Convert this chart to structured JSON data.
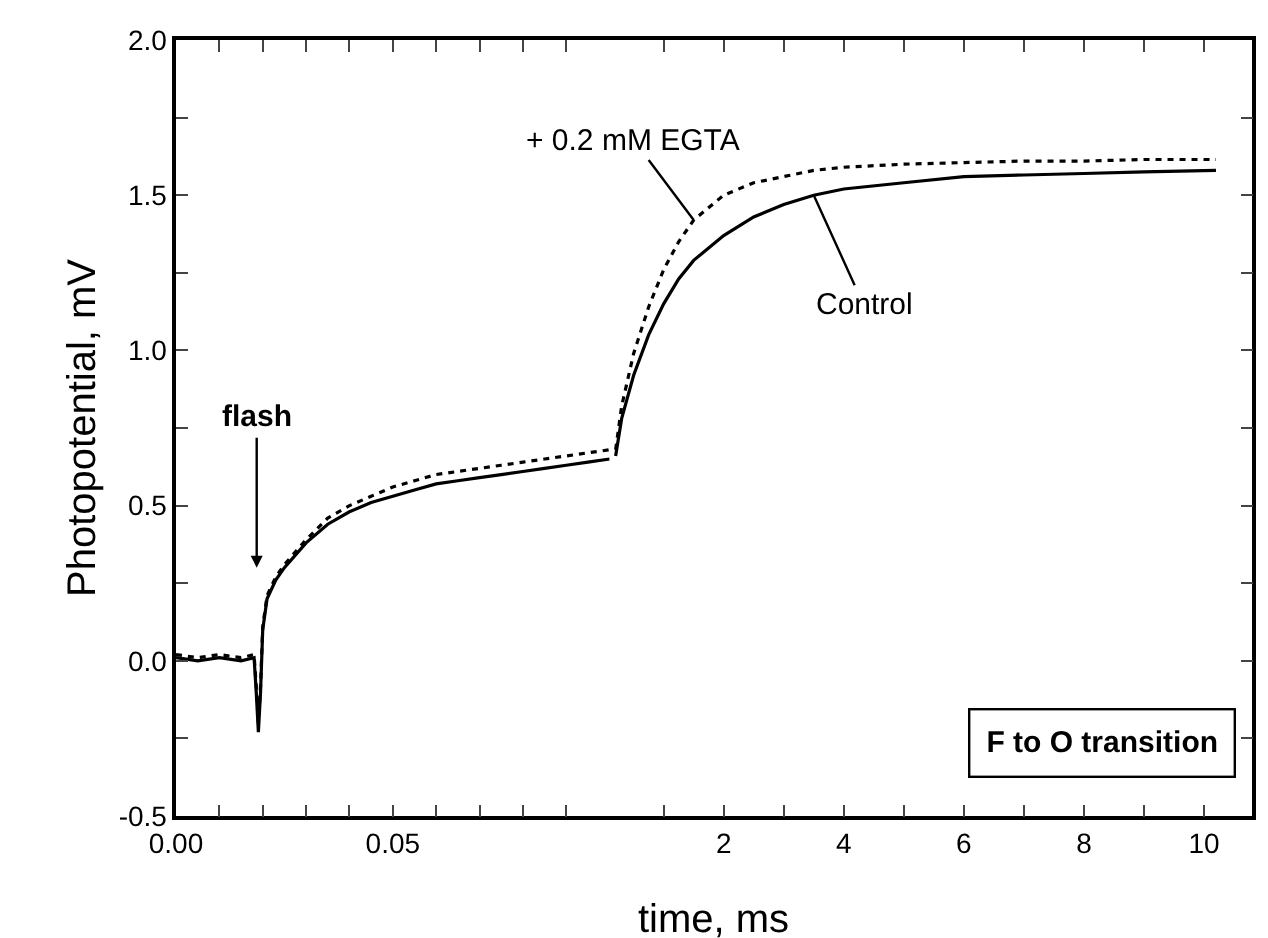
{
  "chart_data": [
    {
      "type": "line",
      "ylabel": "Photopotential, mV",
      "xlim": [
        0,
        0.1
      ],
      "ylim": [
        -0.5,
        2.0
      ],
      "xticks": [
        {
          "value": 0,
          "label": "0.00"
        },
        {
          "value": 0.01,
          "label": null
        },
        {
          "value": 0.02,
          "label": null
        },
        {
          "value": 0.03,
          "label": null
        },
        {
          "value": 0.04,
          "label": null
        },
        {
          "value": 0.05,
          "label": "0.05"
        },
        {
          "value": 0.06,
          "label": null
        },
        {
          "value": 0.07,
          "label": null
        },
        {
          "value": 0.08,
          "label": null
        },
        {
          "value": 0.09,
          "label": null
        }
      ],
      "yticks": [
        {
          "value": -0.5,
          "label": "-0.5"
        },
        {
          "value": -0.25,
          "label": null
        },
        {
          "value": 0,
          "label": "0.0"
        },
        {
          "value": 0.25,
          "label": null
        },
        {
          "value": 0.5,
          "label": "0.5"
        },
        {
          "value": 0.75,
          "label": null
        },
        {
          "value": 1.0,
          "label": "1.0"
        },
        {
          "value": 1.25,
          "label": null
        },
        {
          "value": 1.5,
          "label": "1.5"
        },
        {
          "value": 1.75,
          "label": null
        },
        {
          "value": 2.0,
          "label": "2.0"
        }
      ],
      "series": [
        {
          "color": "#000000",
          "line_style": "solid",
          "x": [
            0,
            0.005,
            0.01,
            0.015,
            0.018,
            0.0185,
            0.019,
            0.0195,
            0.02,
            0.021,
            0.023,
            0.025,
            0.03,
            0.035,
            0.04,
            0.045,
            0.05,
            0.055,
            0.06,
            0.065,
            0.07,
            0.075,
            0.08,
            0.085,
            0.09,
            0.095,
            0.1
          ],
          "values": [
            0.01,
            0.0,
            0.01,
            0.0,
            0.01,
            -0.1,
            -0.23,
            -0.1,
            0.1,
            0.2,
            0.26,
            0.3,
            0.38,
            0.44,
            0.48,
            0.51,
            0.53,
            0.55,
            0.57,
            0.58,
            0.59,
            0.6,
            0.61,
            0.62,
            0.63,
            0.64,
            0.65
          ]
        },
        {
          "color": "#000000",
          "line_style": "dotted",
          "x": [
            0,
            0.005,
            0.01,
            0.015,
            0.018,
            0.0185,
            0.019,
            0.0195,
            0.02,
            0.021,
            0.023,
            0.025,
            0.03,
            0.035,
            0.04,
            0.045,
            0.05,
            0.055,
            0.06,
            0.065,
            0.07,
            0.075,
            0.08,
            0.085,
            0.09,
            0.095,
            0.1
          ],
          "values": [
            0.02,
            0.01,
            0.02,
            0.01,
            0.02,
            -0.08,
            -0.2,
            -0.08,
            0.11,
            0.21,
            0.27,
            0.31,
            0.39,
            0.46,
            0.5,
            0.53,
            0.56,
            0.58,
            0.6,
            0.61,
            0.62,
            0.63,
            0.64,
            0.65,
            0.66,
            0.67,
            0.68
          ]
        }
      ],
      "annotations": [
        "flash"
      ],
      "tick_labels": true
    },
    {
      "type": "line",
      "xlabel": "time, ms",
      "xlim": [
        0.1,
        10.8
      ],
      "ylim": [
        -0.5,
        2.0
      ],
      "xticks": [
        {
          "value": 1,
          "label": null
        },
        2,
        {
          "value": 3,
          "label": null
        },
        4,
        {
          "value": 5,
          "label": null
        },
        6,
        {
          "value": 7,
          "label": null
        },
        8,
        {
          "value": 9,
          "label": null
        },
        10
      ],
      "yticks": [
        {
          "value": -0.5,
          "label": null
        },
        {
          "value": -0.25,
          "label": null
        },
        {
          "value": 0,
          "label": null
        },
        {
          "value": 0.25,
          "label": null
        },
        {
          "value": 0.5,
          "label": null
        },
        {
          "value": 0.75,
          "label": null
        },
        {
          "value": 1.0,
          "label": null
        },
        {
          "value": 1.25,
          "label": null
        },
        {
          "value": 1.5,
          "label": null
        },
        {
          "value": 1.75,
          "label": null
        },
        {
          "value": 2.0,
          "label": null
        }
      ],
      "series": [
        {
          "name": "Control",
          "color": "#000000",
          "line_style": "solid",
          "x": [
            0.2,
            0.3,
            0.5,
            0.75,
            1,
            1.25,
            1.5,
            2,
            2.5,
            3,
            3.5,
            4,
            5,
            6,
            7,
            8,
            9,
            10.2
          ],
          "values": [
            0.66,
            0.78,
            0.92,
            1.05,
            1.15,
            1.23,
            1.29,
            1.37,
            1.43,
            1.47,
            1.5,
            1.52,
            1.54,
            1.56,
            1.565,
            1.57,
            1.575,
            1.58
          ]
        },
        {
          "name": "+ 0.2 mM EGTA",
          "color": "#000000",
          "line_style": "dotted",
          "x": [
            0.2,
            0.3,
            0.5,
            0.75,
            1,
            1.25,
            1.5,
            2,
            2.5,
            3,
            3.5,
            4,
            5,
            6,
            7,
            8,
            9,
            10.2
          ],
          "values": [
            0.68,
            0.82,
            0.99,
            1.14,
            1.26,
            1.35,
            1.42,
            1.5,
            1.54,
            1.56,
            1.58,
            1.59,
            1.6,
            1.605,
            1.61,
            1.61,
            1.615,
            1.615
          ]
        }
      ],
      "annotations": [
        "F to O transition"
      ],
      "tick_labels": "x"
    }
  ]
}
